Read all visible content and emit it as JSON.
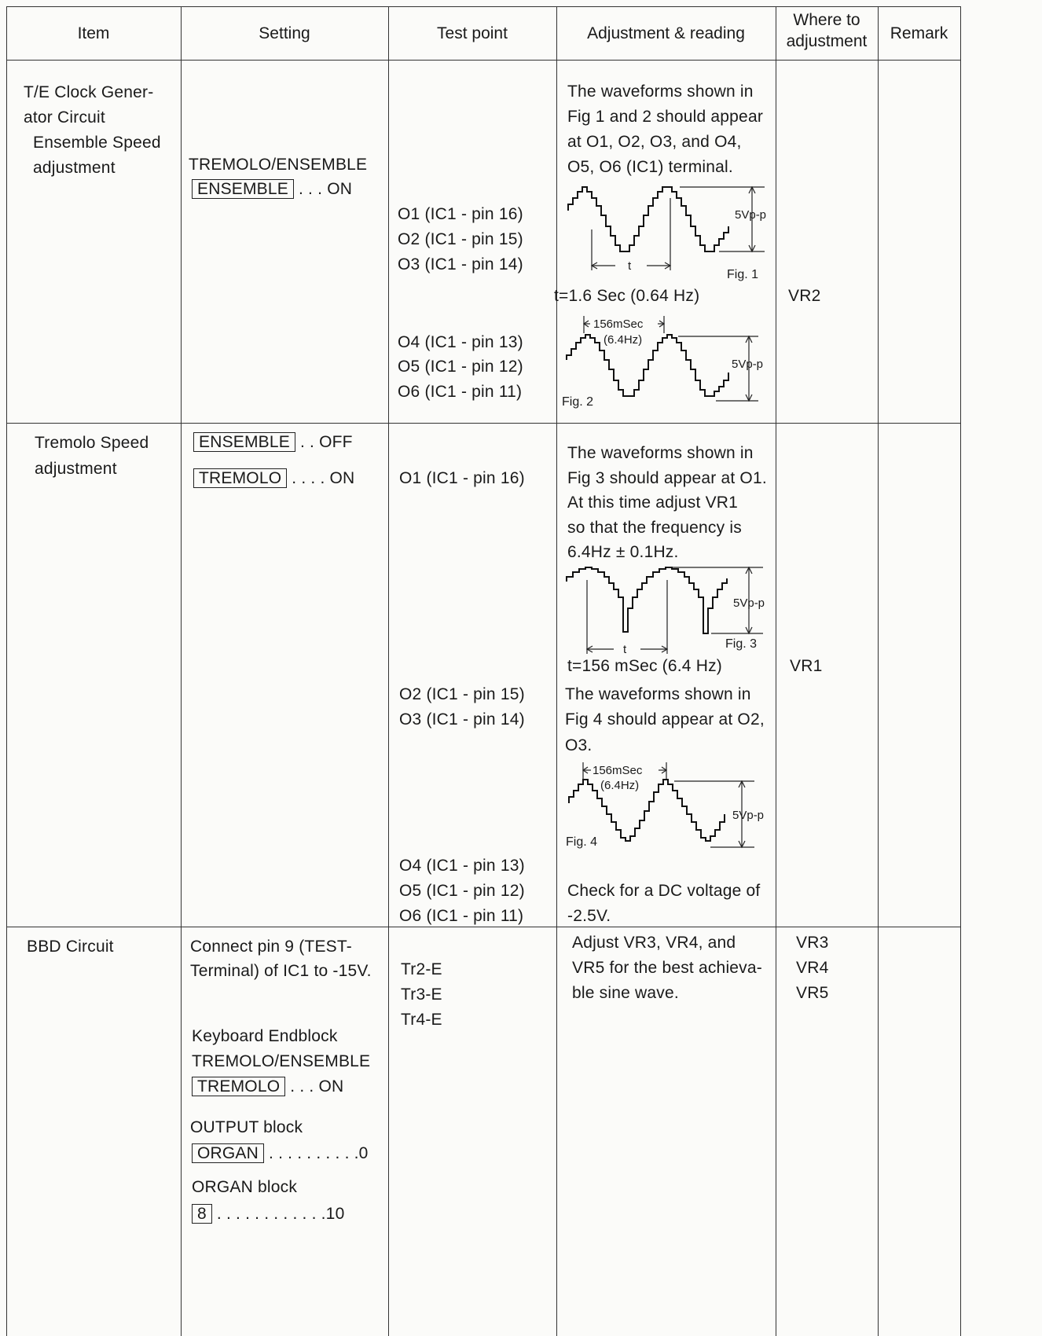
{
  "headers": {
    "item": "Item",
    "setting": "Setting",
    "test_point": "Test point",
    "adjustment_reading": "Adjustment & reading",
    "where_line1": "Where to",
    "where_line2": "adjustment",
    "remark": "Remark"
  },
  "row1": {
    "item": [
      "T/E Clock Gener-",
      "ator Circuit",
      "Ensemble Speed",
      "adjustment"
    ],
    "setting_label": "TREMOLO/ENSEMBLE",
    "setting_box": "ENSEMBLE",
    "setting_value": ". . . ON",
    "test_points_a": [
      "O1 (IC1 - pin 16)",
      "O2 (IC1 - pin 15)",
      "O3 (IC1 - pin 14)"
    ],
    "test_points_b": [
      "O4 (IC1 - pin 13)",
      "O5 (IC1 - pin 12)",
      "O6 (IC1 - pin 11)"
    ],
    "reading": [
      "The waveforms shown in",
      "Fig 1 and 2 should appear",
      "at O1, O2, O3, and O4,",
      "O5, O6 (IC1) terminal."
    ],
    "fig1": {
      "label": "Fig. 1",
      "amplitude": "5Vp-p",
      "period_mark": "t"
    },
    "fig1_result": "t=1.6 Sec (0.64 Hz)",
    "fig2": {
      "label": "Fig. 2",
      "amplitude": "5Vp-p",
      "period": "156mSec",
      "freq": "(6.4Hz)"
    },
    "where": "VR2"
  },
  "row2": {
    "item": [
      "Tremolo Speed",
      "adjustment"
    ],
    "setting1_box": "ENSEMBLE",
    "setting1_value": ". . OFF",
    "setting2_box": "TREMOLO",
    "setting2_value": ". . . . ON",
    "test_point_a": "O1 (IC1 - pin 16)",
    "test_points_b": [
      "O2 (IC1 - pin 15)",
      "O3 (IC1 - pin 14)"
    ],
    "test_points_c": [
      "O4 (IC1 - pin 13)",
      "O5 (IC1 - pin 12)",
      "O6 (IC1 - pin 11)"
    ],
    "reading_a": [
      "The waveforms shown in",
      "Fig 3 should appear at O1.",
      "At this time adjust VR1",
      "so that the frequency is",
      "6.4Hz ± 0.1Hz."
    ],
    "fig3": {
      "label": "Fig. 3",
      "amplitude": "5Vp-p",
      "period_mark": "t"
    },
    "fig3_result": "t=156 mSec (6.4 Hz)",
    "reading_b": [
      "The waveforms shown in",
      "Fig 4 should appear at O2,",
      "O3."
    ],
    "fig4": {
      "label": "Fig. 4",
      "amplitude": "5Vp-p",
      "period": "156mSec",
      "freq": "(6.4Hz)"
    },
    "reading_c": [
      "Check for a DC voltage of",
      "-2.5V."
    ],
    "where": "VR1"
  },
  "row3": {
    "item": "BBD Circuit",
    "setting": [
      "Connect pin 9 (TEST-",
      "Terminal) of IC1 to -15V."
    ],
    "kb_label": [
      "Keyboard Endblock",
      "TREMOLO/ENSEMBLE"
    ],
    "kb_box": "TREMOLO",
    "kb_value": ". . . ON",
    "out_label": "OUTPUT block",
    "out_box": "ORGAN",
    "out_value": ". . . . . . . . . .0",
    "org_label": "ORGAN block",
    "org_box": "8",
    "org_value": ". . . . . . . . . . . .10",
    "test_points": [
      "Tr2-E",
      "Tr3-E",
      "Tr4-E"
    ],
    "reading": [
      "Adjust VR3, VR4, and",
      "VR5 for the best achieva-",
      "ble sine wave."
    ],
    "where": [
      "VR3",
      "VR4",
      "VR5"
    ]
  }
}
